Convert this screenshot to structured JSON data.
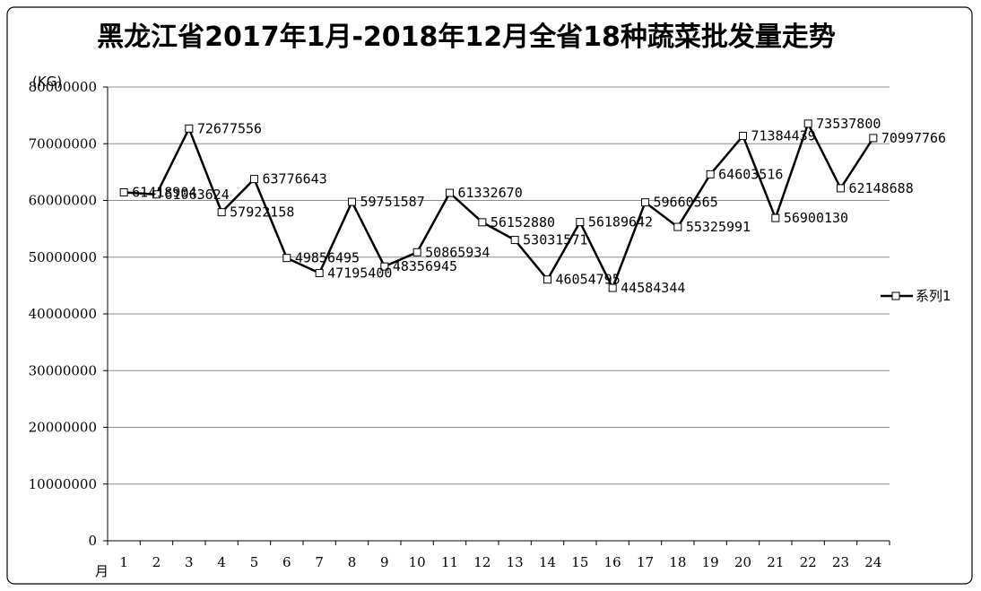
{
  "chart_data": {
    "type": "line",
    "title": "黑龙江省2017年1月-2018年12月全省18种蔬菜批发量走势",
    "ylabel": "(KG)",
    "xlabel": "月",
    "ylim": [
      0,
      80000000
    ],
    "yticks": [
      "0",
      "10000000",
      "20000000",
      "30000000",
      "40000000",
      "50000000",
      "60000000",
      "70000000",
      "80000000"
    ],
    "grid": true,
    "legend_position": "right",
    "categories": [
      "1",
      "2",
      "3",
      "4",
      "5",
      "6",
      "7",
      "8",
      "9",
      "10",
      "11",
      "12",
      "13",
      "14",
      "15",
      "16",
      "17",
      "18",
      "19",
      "20",
      "21",
      "22",
      "23",
      "24"
    ],
    "series": [
      {
        "name": "系列1",
        "color": "#000000",
        "values": [
          61418904,
          61063624,
          72677556,
          57922158,
          63776643,
          49856495,
          47195400,
          59751587,
          48356945,
          50865934,
          61332670,
          56152880,
          53031571,
          46054795,
          56189642,
          44584344,
          59660565,
          55325991,
          64603516,
          71384439,
          56900130,
          73537800,
          62148688,
          70997766
        ],
        "labels": [
          "61418904",
          "61063624",
          "72677556",
          "57922158",
          "63776643",
          "49856495",
          "47195400",
          "59751587",
          "48356945",
          "50865934",
          "61332670",
          "56152880",
          "53031571",
          "46054795",
          "56189642",
          "44584344",
          "59660565",
          "55325991",
          "64603516",
          "71384439",
          "56900130",
          "73537800",
          "62148688",
          "70997766"
        ]
      }
    ]
  }
}
